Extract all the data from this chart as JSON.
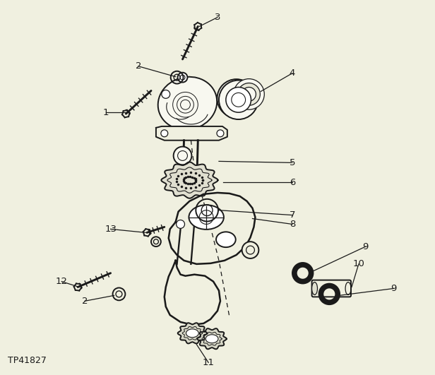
{
  "background_color": "#f0f0e0",
  "line_color": "#1a1a1a",
  "text_color": "#1a1a1a",
  "watermark": "TP41827",
  "figsize": [
    6.16,
    5.31
  ],
  "dpi": 100
}
